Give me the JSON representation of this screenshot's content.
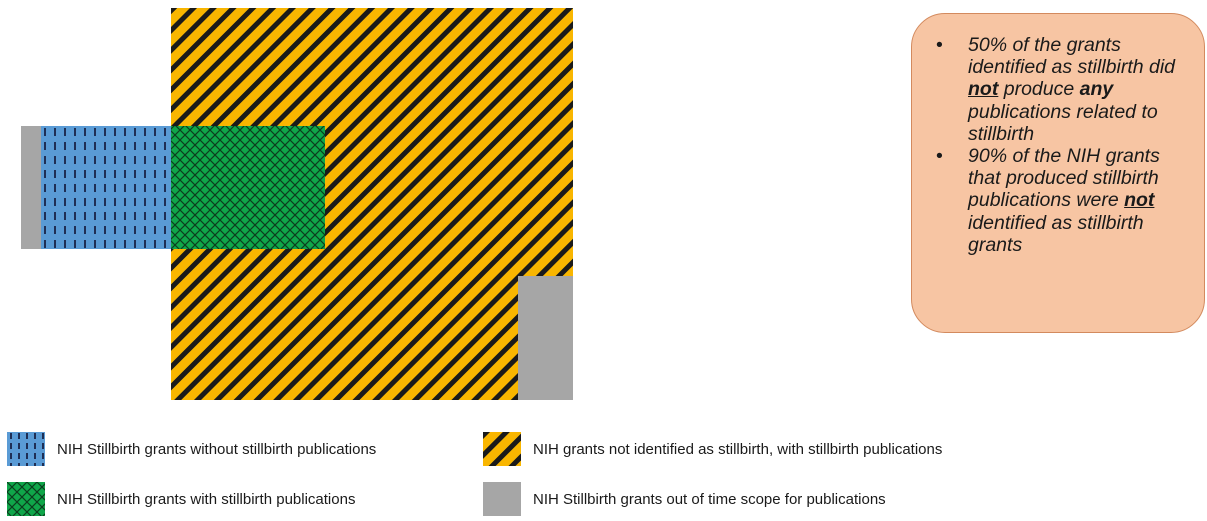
{
  "callout": {
    "bullets": [
      {
        "segments": [
          {
            "text": "50% of the grants identified as stillbirth did ",
            "style": "plain"
          },
          {
            "text": "not",
            "style": "bold-underline"
          },
          {
            "text": " produce ",
            "style": "plain"
          },
          {
            "text": "any",
            "style": "bold"
          },
          {
            "text": " publications related to stillbirth",
            "style": "plain"
          }
        ]
      },
      {
        "segments": [
          {
            "text": "90% of the NIH grants that produced stillbirth publications were ",
            "style": "plain"
          },
          {
            "text": "not",
            "style": "bold-underline"
          },
          {
            "text": " identified as stillbirth grants",
            "style": "plain"
          }
        ]
      }
    ],
    "bullet_glyph": "•"
  },
  "legend": {
    "items": [
      {
        "key": "blue",
        "label": "NIH Stillbirth grants without stillbirth publications"
      },
      {
        "key": "yellow",
        "label": "NIH grants not identified as stillbirth, with stillbirth publications"
      },
      {
        "key": "green",
        "label": "NIH Stillbirth grants with stillbirth publications"
      },
      {
        "key": "gray",
        "label": "NIH Stillbirth grants out of time scope for publications"
      }
    ]
  },
  "colors": {
    "yellow": "#f9b600",
    "blue": "#5a9bd5",
    "green": "#10a64a",
    "gray": "#a6a6a6",
    "stripe": "#1a1a1a",
    "callout_fill": "#f7c5a3"
  }
}
